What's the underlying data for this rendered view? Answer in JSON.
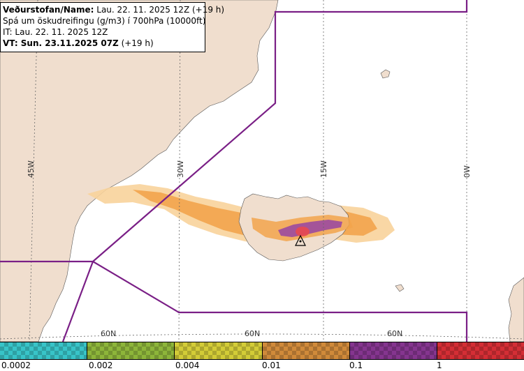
{
  "info": {
    "line1_bold": "Veðurstofan/Name:",
    "line1_rest": " Lau. 22. 11. 2025 12Z (+19 h)",
    "line2": "Spá um öskudreifingu (g/m3) í 700hPa (10000ft)",
    "line3": "IT: Lau. 22. 11. 2025 12Z",
    "line4_bold": "VT: Sun. 23.11.2025 07Z",
    "line4_rest": " (+19 h)"
  },
  "grid": {
    "longitudes": [
      "45W",
      "30W",
      "15W",
      "0W"
    ],
    "latitudes": [
      "60N",
      "60N",
      "60N"
    ]
  },
  "legend": {
    "labels": [
      "0.0002",
      "0.002",
      "0.004",
      "0.01",
      "0.1",
      "1"
    ],
    "colors": [
      "#38c4c8",
      "#8db53a",
      "#d3cc37",
      "#d08a3a",
      "#85358f",
      "#d42e35"
    ]
  },
  "colors": {
    "ocean": "#ffffff",
    "land": "#f0dece",
    "boundary": "#7a1f86",
    "ash_light": "#f8d39b",
    "ash_mid": "#f2a44c",
    "ash_high": "#9b4aa0",
    "ash_peak": "#e8494f"
  },
  "icons": [
    "volcano-marker-icon"
  ]
}
